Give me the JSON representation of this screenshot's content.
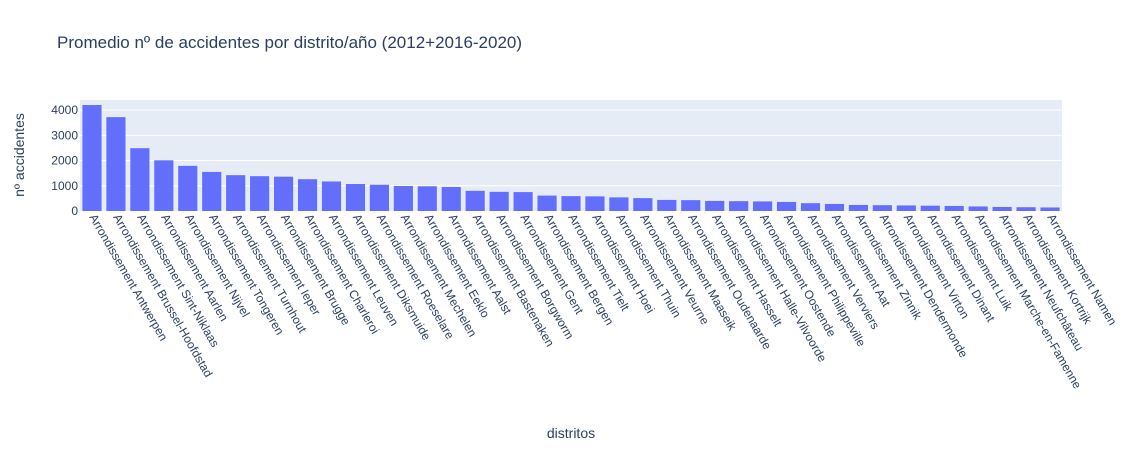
{
  "chart_data": {
    "type": "bar",
    "title": "Promedio nº de accidentes por distrito/año (2012+2016-2020)",
    "xlabel": "distritos",
    "ylabel": "nº accidentes",
    "ylim": [
      0,
      4400
    ],
    "yticks": [
      0,
      1000,
      2000,
      3000,
      4000
    ],
    "yticklabels": [
      "0",
      "1000",
      "2000",
      "3000",
      "4000"
    ],
    "grid": true,
    "categories": [
      "Arrondissement Antwerpen",
      "Arrondissement Brussel-Hoofdstad",
      "Arrondissement Sint-Niklaas",
      "Arrondissement Aarlen",
      "Arrondissement Nijvel",
      "Arrondissement Tongeren",
      "Arrondissement Turnhout",
      "Arrondissement Ieper",
      "Arrondissement Brugge",
      "Arrondissement Charleroi",
      "Arrondissement Leuven",
      "Arrondissement Diksmuide",
      "Arrondissement Roeselare",
      "Arrondissement Mechelen",
      "Arrondissement Eeklo",
      "Arrondissement Aalst",
      "Arrondissement Bastenaken",
      "Arrondissement Borgworm",
      "Arrondissement Gent",
      "Arrondissement Bergen",
      "Arrondissement Tielt",
      "Arrondissement Hoei",
      "Arrondissement Thuin",
      "Arrondissement Veurne",
      "Arrondissement Maaseik",
      "Arrondissement Oudenaarde",
      "Arrondissement Hasselt",
      "Arrondissement Halle-Vilvoorde",
      "Arrondissement Oostende",
      "Arrondissement Philippeville",
      "Arrondissement Verviers",
      "Arrondissement Aat",
      "Arrondissement Zinnik",
      "Arrondissement Dendermonde",
      "Arrondissement Virton",
      "Arrondissement Dinant",
      "Arrondissement Luik",
      "Arrondissement Marche-en-Famenne",
      "Arrondissement Neufchâteau",
      "Arrondissement Kortrijk",
      "Arrondissement Namen"
    ],
    "values": [
      4200,
      3720,
      2490,
      2010,
      1790,
      1550,
      1420,
      1380,
      1360,
      1260,
      1170,
      1070,
      1040,
      990,
      980,
      950,
      800,
      760,
      750,
      610,
      590,
      580,
      540,
      510,
      440,
      430,
      400,
      390,
      380,
      360,
      310,
      280,
      240,
      230,
      220,
      210,
      200,
      180,
      160,
      150,
      140
    ],
    "color": "#636efa"
  }
}
